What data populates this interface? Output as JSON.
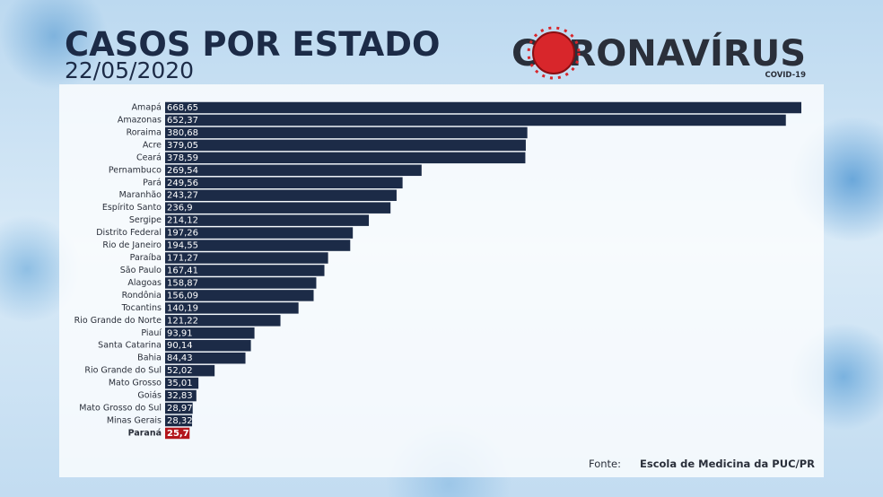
{
  "chart_data": {
    "type": "hbar",
    "title": "CASOS POR ESTADO",
    "subtitle": "22/05/2020",
    "brand": "CORONAVÍRUS",
    "brand_sub": "COVID-19",
    "source_label": "Fonte:",
    "source": "Escola de Medicina da PUC/PR",
    "categories": [
      "Amapá",
      "Amazonas",
      "Roraima",
      "Acre",
      "Ceará",
      "Pernambuco",
      "Pará",
      "Maranhão",
      "Espírito Santo",
      "Sergipe",
      "Distrito Federal",
      "Rio de Janeiro",
      "Paraíba",
      "São Paulo",
      "Alagoas",
      "Rondônia",
      "Tocantins",
      "Rio Grande do Norte",
      "Piauí",
      "Santa Catarina",
      "Bahia",
      "Rio Grande do Sul",
      "Mato Grosso",
      "Goiás",
      "Mato Grosso do Sul",
      "Minas Gerais",
      "Paraná"
    ],
    "values": [
      668.65,
      652.37,
      380.68,
      379.05,
      378.59,
      269.54,
      249.56,
      243.27,
      236.9,
      214.12,
      197.26,
      194.55,
      171.27,
      167.41,
      158.87,
      156.09,
      140.19,
      121.22,
      93.91,
      90.14,
      84.43,
      52.02,
      35.01,
      32.83,
      28.97,
      28.32,
      25.7
    ],
    "value_labels": [
      "668,65",
      "652,37",
      "380,68",
      "379,05",
      "378,59",
      "269,54",
      "249,56",
      "243,27",
      "236,9",
      "214,12",
      "197,26",
      "194,55",
      "171,27",
      "167,41",
      "158,87",
      "156,09",
      "140,19",
      "121,22",
      "93,91",
      "90,14",
      "84,43",
      "52,02",
      "35,01",
      "32,83",
      "28,97",
      "28,32",
      "25,7"
    ],
    "color": "#1c2b47",
    "colors": [
      "#1c2b47",
      "#1c2b47",
      "#1c2b47",
      "#1c2b47",
      "#1c2b47",
      "#1c2b47",
      "#1c2b47",
      "#1c2b47",
      "#1c2b47",
      "#1c2b47",
      "#1c2b47",
      "#1c2b47",
      "#1c2b47",
      "#1c2b47",
      "#1c2b47",
      "#1c2b47",
      "#1c2b47",
      "#1c2b47",
      "#1c2b47",
      "#1c2b47",
      "#1c2b47",
      "#1c2b47",
      "#1c2b47",
      "#1c2b47",
      "#1c2b47",
      "#1c2b47",
      "#b3161c"
    ]
  }
}
